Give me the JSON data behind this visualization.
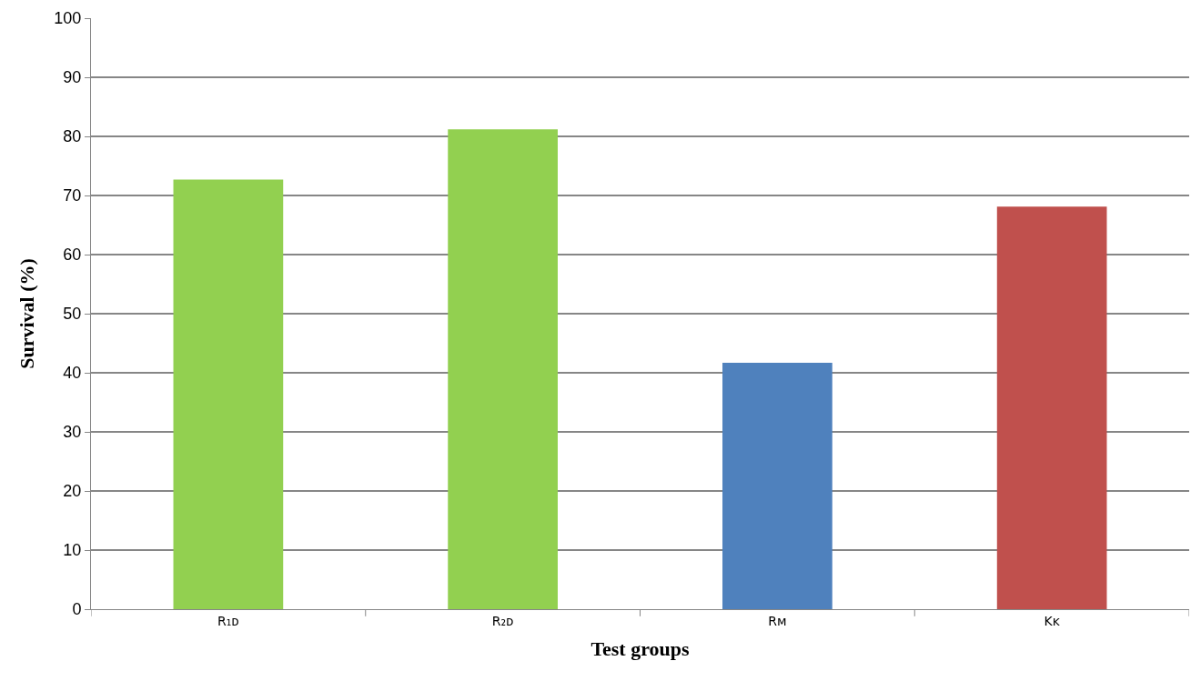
{
  "chart_data": {
    "type": "bar",
    "xlabel": "Test groups",
    "ylabel": "Survival (%)",
    "categories": [
      "R₁ᴅ",
      "R₂ᴅ",
      "Rᴍ",
      "Kᴋ"
    ],
    "values": [
      72.7,
      81.2,
      41.7,
      68.1
    ],
    "colors": [
      "#92d050",
      "#92d050",
      "#4f81bd",
      "#c0504d"
    ],
    "ylim": [
      0,
      100
    ],
    "yticks": [
      0,
      10,
      20,
      30,
      40,
      50,
      60,
      70,
      80,
      90,
      100
    ],
    "grid": "y"
  }
}
